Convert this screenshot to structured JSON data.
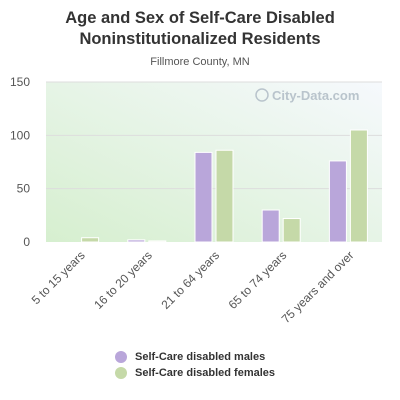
{
  "title_line1": "Age and Sex of Self-Care Disabled",
  "title_line2": "Noninstitutionalized Residents",
  "subtitle": "Fillmore County, MN",
  "watermark": "City-Data.com",
  "colors": {
    "males": "#b9a6da",
    "females": "#c5d9a8",
    "grid": "#dddddd",
    "axis_text": "#555555"
  },
  "chart_data": {
    "type": "bar",
    "title": "Age and Sex of Self-Care Disabled Noninstitutionalized Residents",
    "subtitle": "Fillmore County, MN",
    "categories": [
      "5 to 15 years",
      "16 to 20 years",
      "21 to 64 years",
      "65 to 74 years",
      "75 years and over"
    ],
    "series": [
      {
        "name": "Self-Care disabled males",
        "values": [
          0,
          2,
          84,
          30,
          76
        ]
      },
      {
        "name": "Self-Care disabled females",
        "values": [
          4,
          1,
          86,
          22,
          105
        ]
      }
    ],
    "yticks": [
      0,
      50,
      100,
      150
    ],
    "ylim": [
      0,
      150
    ],
    "grid": true,
    "legend": "bottom"
  }
}
